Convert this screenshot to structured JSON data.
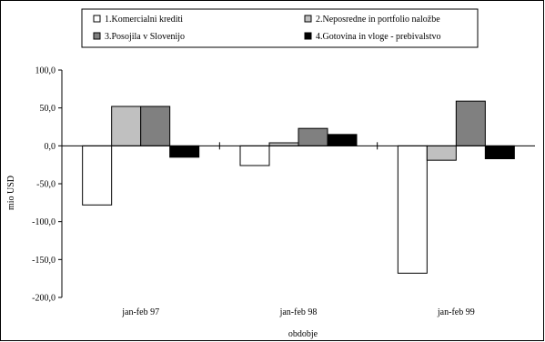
{
  "chart_data": {
    "type": "bar",
    "title": "",
    "xlabel": "obdobje",
    "ylabel": "mio USD",
    "categories": [
      "jan-feb 97",
      "jan-feb 98",
      "jan-feb 99"
    ],
    "ylim": [
      -200,
      100
    ],
    "yticks": [
      100,
      50,
      0,
      -50,
      -100,
      -150,
      -200
    ],
    "ytick_labels": [
      "100,0",
      "50,0",
      "0,0",
      "-50,0",
      "-100,0",
      "-150,0",
      "-200,0"
    ],
    "grid": false,
    "legend_position": "top",
    "series": [
      {
        "name": "1.Komercialni krediti",
        "color": "#ffffff",
        "values": [
          -78,
          -26,
          -168
        ]
      },
      {
        "name": "2.Neposredne in portfolio naložbe",
        "color": "#c0c0c0",
        "values": [
          52,
          4,
          -19
        ]
      },
      {
        "name": "3.Posojila v Slovenijo",
        "color": "#808080",
        "values": [
          52,
          23,
          59
        ]
      },
      {
        "name": "4.Gotovina in vloge - prebivalstvo",
        "color": "#000000",
        "values": [
          -15,
          15,
          -17
        ]
      }
    ]
  }
}
